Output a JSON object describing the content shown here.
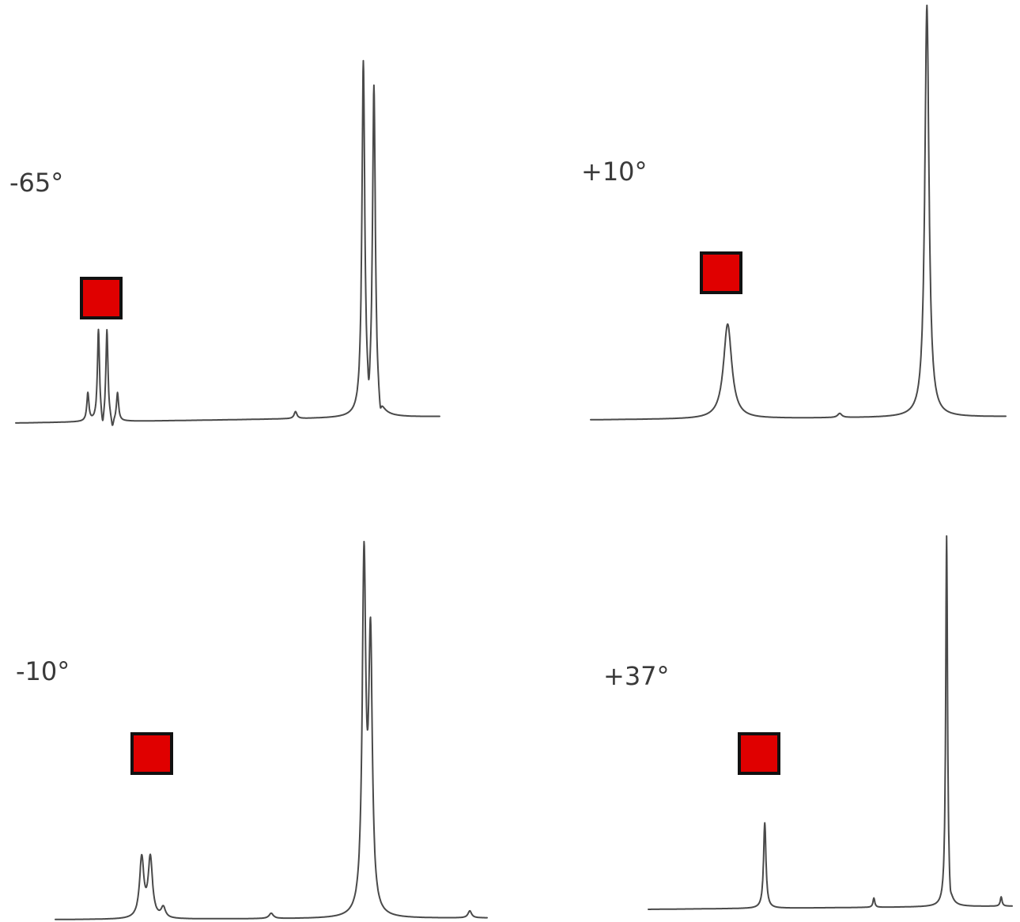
{
  "colors": {
    "trace": "#4a4a4a",
    "marker_fill": "#e00000",
    "marker_border": "#111111",
    "label": "#3a3a3a"
  },
  "chart_data": [
    {
      "type": "line",
      "panel": "top-left",
      "label": "-65°",
      "x_range": [
        0,
        1
      ],
      "y_range": [
        0,
        1
      ],
      "peaks": [
        {
          "x": 0.17,
          "h": 0.08,
          "w": 0.003
        },
        {
          "x": 0.195,
          "h": 0.26,
          "w": 0.003
        },
        {
          "x": 0.215,
          "h": 0.26,
          "w": 0.003
        },
        {
          "x": 0.24,
          "h": 0.08,
          "w": 0.003
        },
        {
          "x": 0.66,
          "h": 0.02,
          "w": 0.004
        },
        {
          "x": 0.82,
          "h": 1.0,
          "w": 0.004
        },
        {
          "x": 0.845,
          "h": 0.93,
          "w": 0.004
        }
      ],
      "dips": [
        {
          "x": 0.205,
          "d": 0.04,
          "w": 0.003
        },
        {
          "x": 0.228,
          "d": 0.03,
          "w": 0.003
        },
        {
          "x": 0.833,
          "d": 0.07,
          "w": 0.003
        },
        {
          "x": 0.86,
          "d": 0.04,
          "w": 0.003
        }
      ]
    },
    {
      "type": "line",
      "panel": "top-right",
      "label": "+10°",
      "x_range": [
        0,
        1
      ],
      "y_range": [
        0,
        1
      ],
      "peaks": [
        {
          "x": 0.33,
          "h": 0.23,
          "w": 0.012
        },
        {
          "x": 0.6,
          "h": 0.01,
          "w": 0.006
        },
        {
          "x": 0.81,
          "h": 1.0,
          "w": 0.006
        }
      ],
      "dips": []
    },
    {
      "type": "line",
      "panel": "bottom-left",
      "label": "-10°",
      "x_range": [
        0,
        1
      ],
      "y_range": [
        0,
        1
      ],
      "peaks": [
        {
          "x": 0.2,
          "h": 0.17,
          "w": 0.006
        },
        {
          "x": 0.22,
          "h": 0.17,
          "w": 0.006
        },
        {
          "x": 0.25,
          "h": 0.03,
          "w": 0.006
        },
        {
          "x": 0.5,
          "h": 0.015,
          "w": 0.006
        },
        {
          "x": 0.715,
          "h": 1.0,
          "w": 0.005
        },
        {
          "x": 0.73,
          "h": 0.76,
          "w": 0.005
        },
        {
          "x": 0.96,
          "h": 0.02,
          "w": 0.005
        }
      ],
      "dips": []
    },
    {
      "type": "line",
      "panel": "bottom-right",
      "label": "+37°",
      "x_range": [
        0,
        1
      ],
      "y_range": [
        0,
        1
      ],
      "peaks": [
        {
          "x": 0.32,
          "h": 0.23,
          "w": 0.004
        },
        {
          "x": 0.62,
          "h": 0.025,
          "w": 0.003
        },
        {
          "x": 0.82,
          "h": 1.0,
          "w": 0.003
        },
        {
          "x": 0.97,
          "h": 0.025,
          "w": 0.003
        }
      ],
      "dips": [
        {
          "x": 0.83,
          "d": 0.03,
          "w": 0.003
        }
      ]
    }
  ]
}
